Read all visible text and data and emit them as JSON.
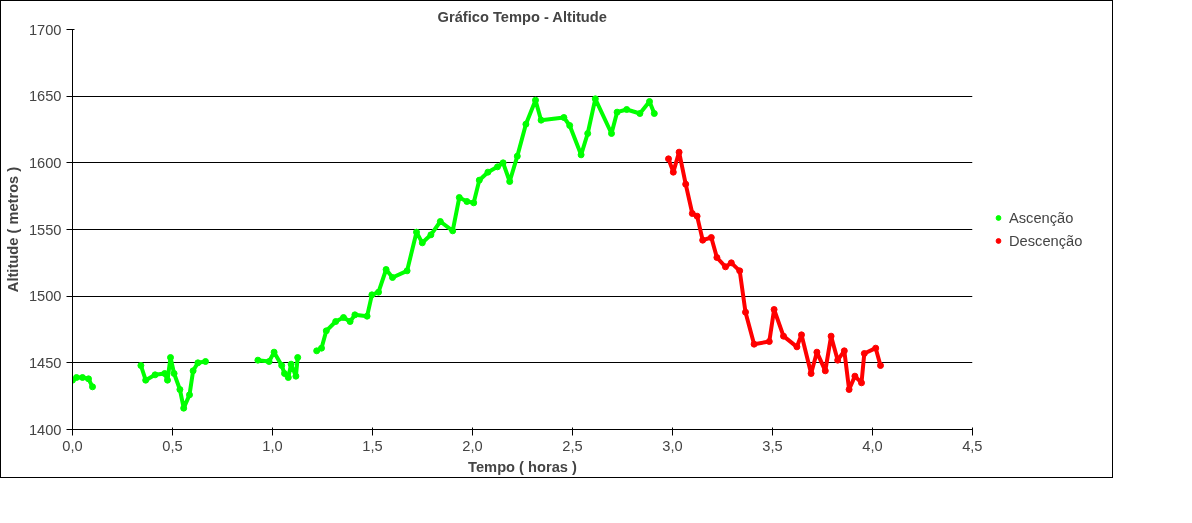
{
  "chart_data": {
    "type": "line",
    "title": "Gráfico Tempo - Altitude",
    "xlabel": "Tempo ( horas )",
    "ylabel": "Altitude ( metros )",
    "xlim": [
      0,
      4.5
    ],
    "ylim": [
      1400,
      1700
    ],
    "xticks": [
      {
        "value": 0,
        "label": "0,0"
      },
      {
        "value": 0.5,
        "label": "0,5"
      },
      {
        "value": 1,
        "label": "1,0"
      },
      {
        "value": 1.5,
        "label": "1,5"
      },
      {
        "value": 2,
        "label": "2,0"
      },
      {
        "value": 2.5,
        "label": "2,5"
      },
      {
        "value": 3,
        "label": "3,0"
      },
      {
        "value": 3.5,
        "label": "3,5"
      },
      {
        "value": 4,
        "label": "4,0"
      },
      {
        "value": 4.5,
        "label": "4,5"
      }
    ],
    "yticks": [
      1400,
      1450,
      1500,
      1550,
      1600,
      1650,
      1700
    ],
    "grid": "y",
    "legend": "right",
    "marker": "circle",
    "line_style": "solid",
    "series": [
      {
        "name": "Ascenção",
        "color": "#00ff00",
        "x": [
          0.0,
          0.02,
          0.05,
          0.08,
          0.1,
          0.2,
          0.342,
          0.366,
          0.413,
          0.461,
          0.475,
          0.49,
          0.508,
          0.537,
          0.556,
          0.585,
          0.603,
          0.627,
          0.665,
          0.8,
          0.927,
          0.983,
          1.008,
          1.046,
          1.06,
          1.079,
          1.093,
          1.117,
          1.126,
          1.17,
          1.221,
          1.245,
          1.269,
          1.316,
          1.355,
          1.388,
          1.412,
          1.473,
          1.497,
          1.53,
          1.568,
          1.6,
          1.673,
          1.72,
          1.749,
          1.792,
          1.839,
          1.901,
          1.934,
          1.972,
          2.006,
          2.034,
          2.077,
          2.125,
          2.153,
          2.186,
          2.224,
          2.267,
          2.315,
          2.343,
          2.457,
          2.486,
          2.543,
          2.576,
          2.614,
          2.695,
          2.723,
          2.771,
          2.837,
          2.885,
          2.909
        ],
        "values": [
          1437,
          1439,
          1439,
          1438,
          1432,
          null,
          1448,
          1437,
          1441,
          1442,
          1437,
          1454,
          1442,
          1430,
          1416,
          1426,
          1444,
          1450,
          1451,
          null,
          1452,
          1451,
          1458,
          1448,
          1442,
          1439,
          1449,
          1440,
          1454,
          null,
          1459,
          1461,
          1474,
          1481,
          1484,
          1481,
          1486,
          1485,
          1501,
          1503,
          1520,
          1514,
          1519,
          1548,
          1540,
          1546,
          1556,
          1549,
          1574,
          1571,
          1570,
          1587,
          1593,
          1597,
          1600,
          1586,
          1605,
          1629,
          1647,
          1632,
          1634,
          1628,
          1606,
          1622,
          1648,
          1622,
          1638,
          1640,
          1637,
          1646,
          1637
        ]
      },
      {
        "name": "Descenção",
        "color": "#ff0000",
        "x": [
          2.98,
          3.004,
          3.033,
          3.066,
          3.099,
          3.123,
          3.151,
          3.194,
          3.222,
          3.265,
          3.294,
          3.336,
          3.365,
          3.408,
          3.484,
          3.508,
          3.555,
          3.622,
          3.645,
          3.693,
          3.722,
          3.764,
          3.793,
          3.826,
          3.859,
          3.883,
          3.912,
          3.945,
          3.959,
          4.016,
          4.04
        ],
        "values": [
          1603,
          1593,
          1608,
          1584,
          1562,
          1560,
          1542,
          1544,
          1529,
          1522,
          1525,
          1519,
          1488,
          1464,
          1466,
          1490,
          1470,
          1462,
          1471,
          1442,
          1458,
          1444,
          1470,
          1452,
          1459,
          1430,
          1440,
          1435,
          1457,
          1461,
          1448
        ]
      }
    ]
  }
}
